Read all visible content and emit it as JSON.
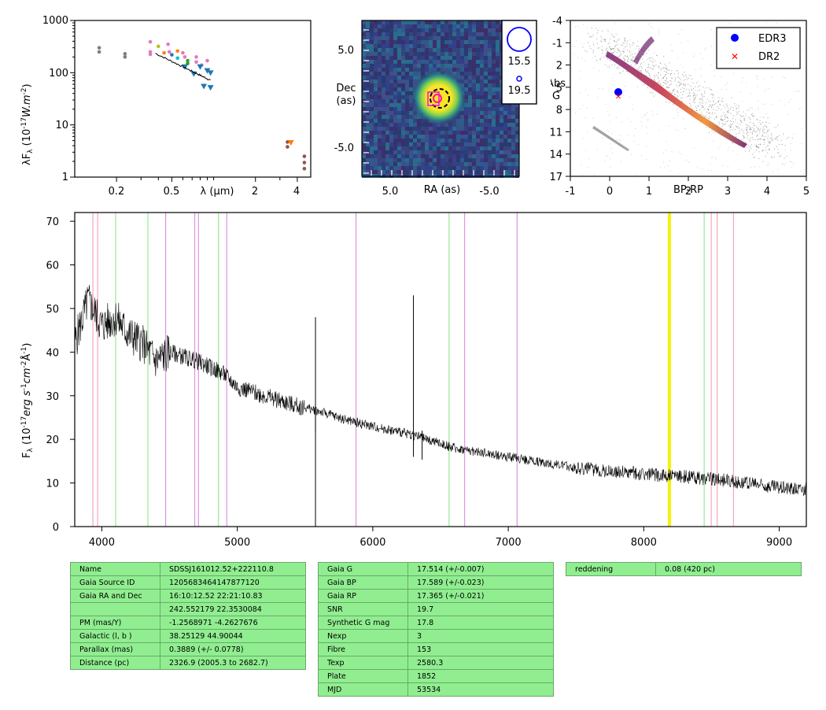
{
  "sed": {
    "ylabel": "λF_λ (10^-17 W.m^-2)",
    "xlabel": "λ (µm)",
    "xticks": [
      "0.2",
      "0.5",
      "2",
      "4"
    ],
    "yticks": [
      "1",
      "10",
      "100",
      "1000"
    ],
    "xlim": [
      0.1,
      5
    ],
    "ylim": [
      1,
      1000
    ],
    "points": [
      {
        "x": 0.15,
        "y": 250,
        "color": "#7f7f7f",
        "m": "o"
      },
      {
        "x": 0.15,
        "y": 300,
        "color": "#7f7f7f",
        "m": "o"
      },
      {
        "x": 0.23,
        "y": 200,
        "color": "#7f7f7f",
        "m": "o"
      },
      {
        "x": 0.23,
        "y": 230,
        "color": "#7f7f7f",
        "m": "o"
      },
      {
        "x": 0.35,
        "y": 390,
        "color": "#e377c2",
        "m": "o"
      },
      {
        "x": 0.35,
        "y": 250,
        "color": "#e377c2",
        "m": "o"
      },
      {
        "x": 0.35,
        "y": 225,
        "color": "#e377c2",
        "m": "o"
      },
      {
        "x": 0.4,
        "y": 320,
        "color": "#bcbd22",
        "m": "o"
      },
      {
        "x": 0.44,
        "y": 240,
        "color": "#ff7f0e",
        "m": "o"
      },
      {
        "x": 0.47,
        "y": 350,
        "color": "#e377c2",
        "m": "o"
      },
      {
        "x": 0.48,
        "y": 250,
        "color": "#e377c2",
        "m": "o"
      },
      {
        "x": 0.5,
        "y": 220,
        "color": "#1f77b4",
        "m": "o"
      },
      {
        "x": 0.55,
        "y": 260,
        "color": "#ff7f0e",
        "m": "o"
      },
      {
        "x": 0.55,
        "y": 190,
        "color": "#17becf",
        "m": "o"
      },
      {
        "x": 0.6,
        "y": 240,
        "color": "#e377c2",
        "m": "o"
      },
      {
        "x": 0.62,
        "y": 200,
        "color": "#e377c2",
        "m": "o"
      },
      {
        "x": 0.65,
        "y": 170,
        "color": "#2ca02c",
        "m": "o"
      },
      {
        "x": 0.65,
        "y": 150,
        "color": "#2ca02c",
        "m": "o"
      },
      {
        "x": 0.75,
        "y": 200,
        "color": "#e377c2",
        "m": "o"
      },
      {
        "x": 0.75,
        "y": 160,
        "color": "#e377c2",
        "m": "o"
      },
      {
        "x": 0.82,
        "y": 140,
        "color": "#e377c2",
        "m": "o"
      },
      {
        "x": 0.9,
        "y": 170,
        "color": "#e377c2",
        "m": "o"
      },
      {
        "x": 0.62,
        "y": 130,
        "color": "#1f77b4",
        "m": "v"
      },
      {
        "x": 0.72,
        "y": 95,
        "color": "#1f77b4",
        "m": "v"
      },
      {
        "x": 0.8,
        "y": 130,
        "color": "#1f77b4",
        "m": "v"
      },
      {
        "x": 0.85,
        "y": 55,
        "color": "#1f77b4",
        "m": "v"
      },
      {
        "x": 0.9,
        "y": 110,
        "color": "#1f77b4",
        "m": "v"
      },
      {
        "x": 0.95,
        "y": 52,
        "color": "#1f77b4",
        "m": "v"
      },
      {
        "x": 0.95,
        "y": 100,
        "color": "#1f77b4",
        "m": "v"
      },
      {
        "x": 3.4,
        "y": 4.7,
        "color": "#8c564b",
        "m": "o"
      },
      {
        "x": 3.4,
        "y": 3.8,
        "color": "#8c564b",
        "m": "o"
      },
      {
        "x": 3.6,
        "y": 4.6,
        "color": "#ff7f0e",
        "m": "v"
      },
      {
        "x": 4.5,
        "y": 2.5,
        "color": "#8c564b",
        "m": "o"
      },
      {
        "x": 4.5,
        "y": 1.9,
        "color": "#8c564b",
        "m": "o"
      },
      {
        "x": 4.5,
        "y": 1.45,
        "color": "#8c564b",
        "m": "o"
      }
    ]
  },
  "image": {
    "xlabel": "RA (as)",
    "ylabel_line1": "Dec",
    "ylabel_line2": "(as)",
    "xticks": [
      "5.0",
      "-5.0"
    ],
    "yticks": [
      "5.0",
      "-5.0"
    ],
    "legend": [
      "15.5",
      "19.5"
    ],
    "colors": {
      "bg": "#30366e",
      "mid": "#2a8d8a",
      "core": "#f7e527"
    }
  },
  "hrd": {
    "xlabel": "BP-RP",
    "ylabel_line1": "Abs",
    "ylabel_line2": "G",
    "xticks": [
      "-1",
      "0",
      "1",
      "2",
      "3",
      "4",
      "5"
    ],
    "yticks": [
      "-4",
      "-1",
      "2",
      "5",
      "8",
      "11",
      "14",
      "17"
    ],
    "xlim": [
      -1,
      5
    ],
    "ylim": [
      -4,
      17
    ],
    "legend": [
      {
        "label": "EDR3",
        "color": "#0000ff",
        "m": "o"
      },
      {
        "label": "DR2",
        "color": "#ff0000",
        "m": "x"
      }
    ],
    "target": {
      "x": 0.22,
      "y": 5.5
    }
  },
  "chart_data": {
    "type": "line",
    "title": "",
    "xlabel": "",
    "ylabel": "F_λ (10^-17 erg s^-1 cm^-2 Å^-1)",
    "xlim": [
      3800,
      9200
    ],
    "ylim": [
      0,
      72
    ],
    "xticks": [
      "4000",
      "5000",
      "6000",
      "7000",
      "8000",
      "9000"
    ],
    "yticks": [
      "0",
      "10",
      "20",
      "30",
      "40",
      "50",
      "60",
      "70"
    ],
    "series": [
      {
        "x": [
          3800,
          3900,
          4000,
          4100,
          4200,
          4300,
          4400,
          4500,
          4700,
          4900,
          5000,
          5200,
          5400,
          5600,
          5800,
          6000,
          6300,
          6600,
          7000,
          7500,
          8000,
          8500,
          9000,
          9200
        ],
        "values": [
          42,
          52,
          46,
          48,
          44,
          42,
          38,
          40,
          38,
          35,
          32,
          30,
          28,
          26.5,
          24.5,
          23,
          21,
          18,
          16,
          13.5,
          12,
          11,
          9,
          8.5
        ]
      }
    ],
    "spikes": [
      {
        "x": 5577,
        "y": 48
      },
      {
        "x": 6300,
        "y": 53
      },
      {
        "x": 6364,
        "y": 22
      }
    ],
    "lines": {
      "pink": [
        3934,
        3969,
        8498,
        8542,
        8662
      ],
      "green": [
        4102,
        4340,
        4861,
        6563,
        8446
      ],
      "violet": [
        4471,
        4686,
        4713,
        4922,
        5876,
        6678,
        7065
      ],
      "yellow": [
        8183,
        8195
      ]
    },
    "line_colors": {
      "pink": "#f4a0b4",
      "green": "#8ee68e",
      "violet": "#d68edc",
      "yellow": "#f5f000"
    }
  },
  "tables": {
    "t1": [
      [
        "Name",
        "SDSSJ161012.52+222110.8"
      ],
      [
        "Gaia Source ID",
        "1205683464147877120"
      ],
      [
        "Gaia RA and Dec",
        "16:10:12.52    22:21:10.83"
      ],
      [
        "",
        "242.552179    22.3530084"
      ],
      [
        "PM (mas/Y)",
        "-1.2568971    -4.2627676"
      ],
      [
        "Galactic (l, b )",
        "38.25129    44.90044"
      ],
      [
        "Parallax (mas)",
        "0.3889 (+/- 0.0778)"
      ],
      [
        "Distance (pc)",
        "2326.9 (2005.3 to 2682.7)"
      ]
    ],
    "t2": [
      [
        "Gaia G",
        "17.514 (+/-0.007)"
      ],
      [
        "Gaia BP",
        "17.589 (+/-0.023)"
      ],
      [
        "Gaia RP",
        "17.365 (+/-0.021)"
      ],
      [
        "SNR",
        "19.7"
      ],
      [
        "Synthetic G mag",
        "17.8"
      ],
      [
        "Nexp",
        "3"
      ],
      [
        "Fibre",
        "153"
      ],
      [
        "Texp",
        "2580.3"
      ],
      [
        "Plate",
        "1852"
      ],
      [
        "MJD",
        "53534"
      ]
    ],
    "t3": [
      [
        "reddening",
        "0.08 (420 pc)"
      ]
    ]
  }
}
